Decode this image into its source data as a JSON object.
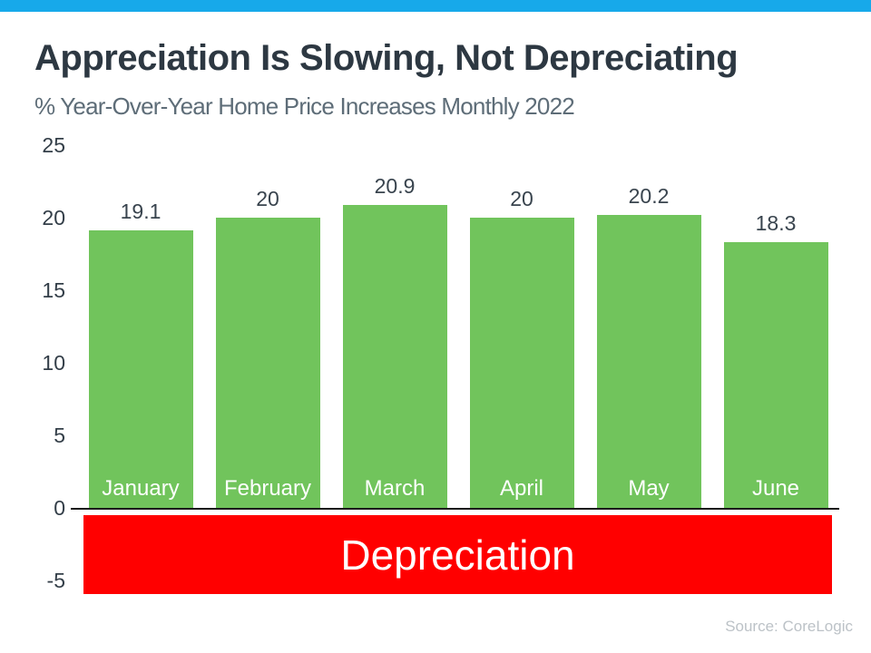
{
  "accent_bar_color": "#17a9ea",
  "chart_data": {
    "type": "bar",
    "title": "Appreciation Is Slowing, Not Depreciating",
    "subtitle": "% Year-Over-Year Home Price Increases Monthly 2022",
    "categories": [
      "January",
      "February",
      "March",
      "April",
      "May",
      "June"
    ],
    "values": [
      19.1,
      20,
      20.9,
      20,
      20.2,
      18.3
    ],
    "value_labels": [
      "19.1",
      "20",
      "20.9",
      "20",
      "20.2",
      "18.3"
    ],
    "yticks": [
      25,
      20,
      15,
      10,
      5,
      0,
      -5
    ],
    "ylim": [
      -5,
      25
    ],
    "grid": "off",
    "legend": "none",
    "xlabel": "",
    "ylabel": "",
    "bar_color": "#71c45c",
    "tick_color": "#333e48",
    "annotation_band": {
      "label": "Depreciation",
      "color": "#ff0000",
      "text_color": "#ffffff",
      "range": [
        -5,
        0
      ]
    }
  },
  "source_note": "Source: CoreLogic"
}
